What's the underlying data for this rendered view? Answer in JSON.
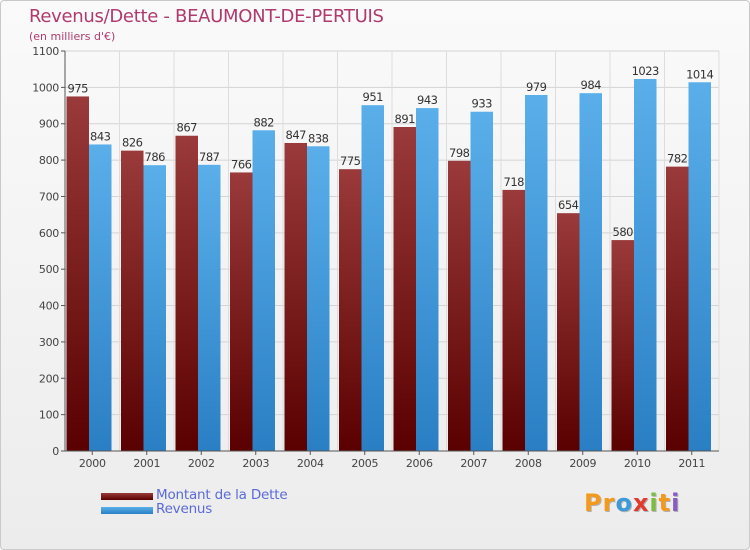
{
  "header": {
    "title": "Revenus/Dette - BEAUMONT-DE-PERTUIS",
    "subtitle": "(en milliers d'€)"
  },
  "chart_data": {
    "type": "bar",
    "categories": [
      "2000",
      "2001",
      "2002",
      "2003",
      "2004",
      "2005",
      "2006",
      "2007",
      "2008",
      "2009",
      "2010",
      "2011"
    ],
    "series": [
      {
        "name": "Montant de la Dette",
        "color": "#8a1818",
        "values": [
          975,
          826,
          867,
          766,
          847,
          775,
          891,
          798,
          718,
          654,
          580,
          782
        ]
      },
      {
        "name": "Revenus",
        "color": "#4ea6e6",
        "values": [
          843,
          786,
          787,
          882,
          838,
          951,
          943,
          933,
          979,
          984,
          1023,
          1014
        ]
      }
    ],
    "ylim": [
      0,
      1100
    ],
    "yticks": [
      0,
      100,
      200,
      300,
      400,
      500,
      600,
      700,
      800,
      900,
      1000,
      1100
    ],
    "grid": true,
    "legend_position": "bottom-left",
    "title": "Revenus/Dette - BEAUMONT-DE-PERTUIS",
    "ylabel": "(en milliers d'€)",
    "xlabel": ""
  },
  "legend": [
    {
      "label": "Montant de la Dette",
      "color": "#8a1818"
    },
    {
      "label": "Revenus",
      "color": "#4ea6e6"
    }
  ],
  "logo": {
    "letters": [
      "P",
      "r",
      "o",
      "x",
      "i",
      "t",
      "i"
    ],
    "colors": [
      "#f39a1c",
      "#f39a1c",
      "#3c9bd6",
      "#e23a2e",
      "#7cbc3e",
      "#f39a1c",
      "#8a5bc2"
    ]
  }
}
